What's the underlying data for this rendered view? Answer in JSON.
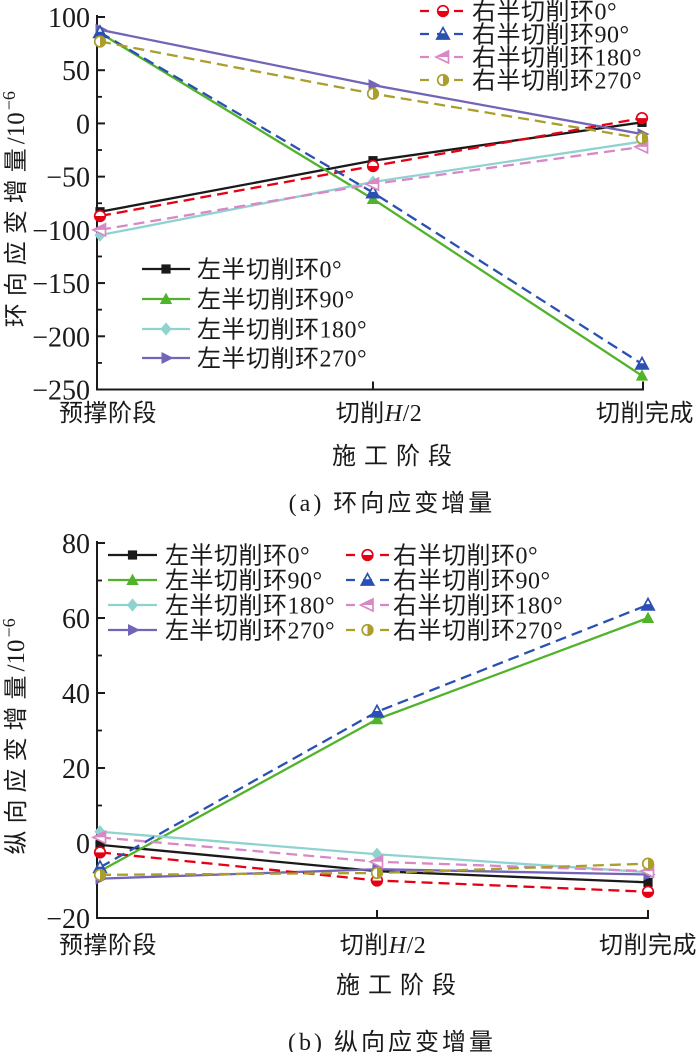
{
  "chart_data": [
    {
      "id": "a",
      "type": "line",
      "caption": "(a)  环向应变增量",
      "xlabel": "施工阶段",
      "ylabel_base": "环向应变增量/10",
      "ylabel_sup": "−6",
      "categories": [
        "预撑阶段",
        "切削H/2",
        "切削完成"
      ],
      "ylim": [
        -250,
        100
      ],
      "ytick_step": 50,
      "yminor_step": 25,
      "grid": false,
      "legend_position": [
        "inside-left-middle",
        "inside-top-right"
      ],
      "series": [
        {
          "id": "left-0",
          "name": "左半切削环0°",
          "color": "#1a1a1a",
          "line": "solid",
          "marker": "square",
          "values": [
            -83,
            -35,
            1
          ]
        },
        {
          "id": "left-90",
          "name": "左半切削环90°",
          "color": "#50b32a",
          "line": "solid",
          "marker": "triangle-up",
          "values": [
            85,
            -71,
            -237
          ]
        },
        {
          "id": "left-180",
          "name": "左半切削环180°",
          "color": "#8fd3d0",
          "line": "solid",
          "marker": "diamond",
          "values": [
            -105,
            -55,
            -17
          ]
        },
        {
          "id": "left-270",
          "name": "左半切削环270°",
          "color": "#7265b8",
          "line": "solid",
          "marker": "triangle-right",
          "values": [
            88,
            36,
            -10
          ]
        },
        {
          "id": "right-0",
          "name": "右半切削环0°",
          "color": "#e60014",
          "line": "dashed",
          "marker": "circle-half-bottom",
          "values": [
            -87,
            -40,
            5
          ]
        },
        {
          "id": "right-90",
          "name": "右半切削环90°",
          "color": "#2b50b4",
          "line": "dashed",
          "marker": "triangle-up-half",
          "values": [
            85.5,
            -65,
            -226
          ]
        },
        {
          "id": "right-180",
          "name": "右半切削环180°",
          "color": "#d988c6",
          "line": "dashed",
          "marker": "triangle-left-half",
          "values": [
            -100,
            -57,
            -22
          ]
        },
        {
          "id": "right-270",
          "name": "右半切削环270°",
          "color": "#ab9e2d",
          "line": "dashed",
          "marker": "circle-half-right",
          "values": [
            77,
            28,
            -14
          ]
        }
      ]
    },
    {
      "id": "b",
      "type": "line",
      "caption": "(b)  纵向应变增量",
      "xlabel": "施工阶段",
      "ylabel_base": "纵向应变增量/10",
      "ylabel_sup": "−6",
      "categories": [
        "预撑阶段",
        "切削H/2",
        "切削完成"
      ],
      "ylim": [
        -20,
        80
      ],
      "ytick_step": 20,
      "yminor_step": 10,
      "grid": false,
      "legend_position": [
        "inside-top-left",
        "inside-top-left-col2"
      ],
      "series": [
        {
          "id": "left-0",
          "name": "左半切削环0°",
          "color": "#1a1a1a",
          "line": "solid",
          "marker": "square",
          "values": [
            -0.5,
            -7.5,
            -10.5
          ]
        },
        {
          "id": "left-90",
          "name": "左半切削环90°",
          "color": "#50b32a",
          "line": "solid",
          "marker": "triangle-up",
          "values": [
            -7.5,
            33,
            60
          ]
        },
        {
          "id": "left-180",
          "name": "左半切削环180°",
          "color": "#8fd3d0",
          "line": "solid",
          "marker": "diamond",
          "values": [
            3,
            -3,
            -7.8
          ]
        },
        {
          "id": "left-270",
          "name": "左半切削环270°",
          "color": "#7265b8",
          "line": "solid",
          "marker": "triangle-right",
          "values": [
            -9.5,
            -7,
            -8.4
          ]
        },
        {
          "id": "right-0",
          "name": "右半切削环0°",
          "color": "#e60014",
          "line": "dashed",
          "marker": "circle-half-bottom",
          "values": [
            -2.5,
            -10,
            -13
          ]
        },
        {
          "id": "right-90",
          "name": "右半切削环90°",
          "color": "#2b50b4",
          "line": "dashed",
          "marker": "triangle-up-half",
          "values": [
            -6.5,
            35,
            63.5
          ]
        },
        {
          "id": "right-180",
          "name": "右半切削环180°",
          "color": "#d988c6",
          "line": "dashed",
          "marker": "triangle-left-half",
          "values": [
            1.5,
            -5,
            -7.5
          ]
        },
        {
          "id": "right-270",
          "name": "右半切削环270°",
          "color": "#ab9e2d",
          "line": "dashed",
          "marker": "circle-half-right",
          "values": [
            -8.5,
            -8,
            -5.5
          ]
        }
      ]
    }
  ]
}
